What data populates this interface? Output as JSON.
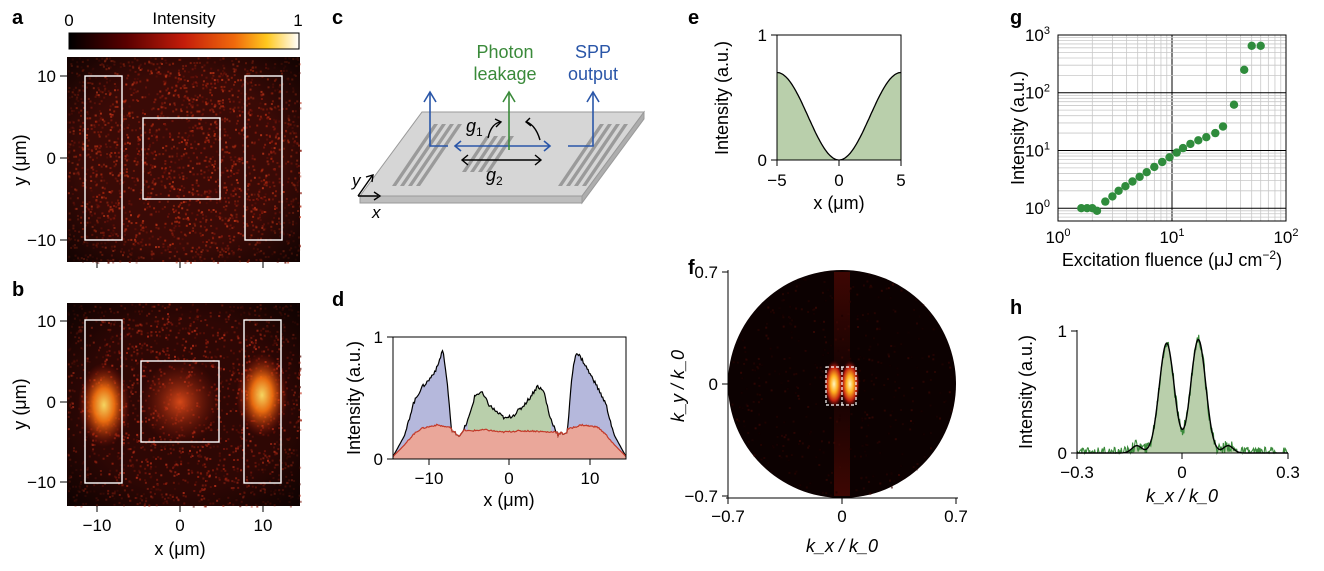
{
  "panel_letters": {
    "a": "a",
    "b": "b",
    "c": "c",
    "d": "d",
    "e": "e",
    "f": "f",
    "g": "g",
    "h": "h"
  },
  "colorbar": {
    "label": "Intensity",
    "min": "0",
    "max": "1"
  },
  "colors": {
    "blue": "#2a56a8",
    "green": "#3a8a3a",
    "fill_green": "#b9cfab",
    "fill_blue": "#b5b8dc",
    "fill_red": "#eaa79a",
    "line_red": "#c33a2a",
    "dot_green": "#2f8c3c"
  },
  "panel_a": {
    "ylabel": "y (μm)",
    "yticks": [
      "10",
      "0",
      "−10"
    ]
  },
  "panel_b": {
    "ylabel": "y (μm)",
    "yticks": [
      "10",
      "0",
      "−10"
    ],
    "xlabel": "x (μm)",
    "xticks": [
      "−10",
      "0",
      "10"
    ]
  },
  "panel_c": {
    "photon_leakage": [
      "Photon",
      "leakage"
    ],
    "spp_output": [
      "SPP",
      "output"
    ],
    "g1": "g",
    "g1_sub": "1",
    "g2": "g",
    "g2_sub": "2",
    "axis_y": "y",
    "axis_x": "x"
  },
  "panel_d": {
    "ylabel": "Intensity (a.u.)",
    "xlabel": "x (μm)",
    "yticks": [
      "1",
      "0"
    ],
    "xticks": [
      "−10",
      "0",
      "10"
    ]
  },
  "panel_e": {
    "ylabel": "Intensity (a.u.)",
    "xlabel": "x (μm)",
    "yticks": [
      "1",
      "0"
    ],
    "xticks": [
      "−5",
      "0",
      "5"
    ]
  },
  "panel_f": {
    "ylabel": "k_y / k_0",
    "xlabel": "k_x / k_0",
    "yticks": [
      "0.7",
      "0",
      "−0.7"
    ],
    "xticks": [
      "−0.7",
      "0",
      "0.7"
    ]
  },
  "panel_h": {
    "ylabel": "Intensity (a.u.)",
    "xlabel": "k_x / k_0",
    "yticks": [
      "1",
      "0"
    ],
    "xticks": [
      "−0.3",
      "0",
      "0.3"
    ]
  },
  "chart_data": [
    {
      "panel": "d",
      "type": "area",
      "xlabel": "x (μm)",
      "ylabel": "Intensity (a.u.)",
      "xlim": [
        -14.5,
        14.5
      ],
      "ylim": [
        0,
        1
      ],
      "series": [
        {
          "values_x": [
            -14.5,
            -13,
            -12,
            -11,
            -10,
            -9,
            -8.3,
            -7.8,
            -7.2,
            -6,
            -5,
            -4.3,
            -3.5,
            -2.5,
            -1.5,
            -0.5,
            0.5,
            1.5,
            2.5,
            3.5,
            4.3,
            5,
            6,
            7.2,
            7.8,
            8.3,
            9,
            10,
            11,
            12,
            13,
            14.5
          ],
          "values_y": [
            0.02,
            0.2,
            0.45,
            0.58,
            0.65,
            0.75,
            0.9,
            0.65,
            0.22,
            0.19,
            0.35,
            0.52,
            0.55,
            0.44,
            0.38,
            0.33,
            0.36,
            0.42,
            0.5,
            0.6,
            0.55,
            0.35,
            0.2,
            0.22,
            0.7,
            0.88,
            0.82,
            0.7,
            0.58,
            0.45,
            0.2,
            0.02
          ]
        },
        {
          "values_x": [
            -14.5,
            -13,
            -12,
            -11,
            -9,
            -7,
            -5,
            -3,
            -1,
            1,
            3,
            5,
            7,
            9,
            11,
            12,
            13,
            14.5
          ],
          "values_y": [
            0.02,
            0.12,
            0.2,
            0.25,
            0.28,
            0.25,
            0.23,
            0.24,
            0.22,
            0.23,
            0.23,
            0.22,
            0.24,
            0.28,
            0.26,
            0.2,
            0.12,
            0.02
          ]
        }
      ]
    },
    {
      "panel": "e",
      "type": "area",
      "xlabel": "x (μm)",
      "ylabel": "Intensity (a.u.)",
      "xlim": [
        -5,
        5
      ],
      "ylim": [
        0,
        1
      ],
      "function": "0.7*sin^2(pi*x/10)"
    },
    {
      "panel": "g",
      "type": "scatter",
      "xlabel": "Excitation fluence (μJ cm−2)",
      "ylabel": "Intensity (a.u.)",
      "xscale": "log",
      "yscale": "log",
      "xlim": [
        1,
        100
      ],
      "ylim": [
        0.6,
        1000
      ],
      "grid": true,
      "xticks": [
        "10^0",
        "10^1",
        "10^2"
      ],
      "yticks": [
        "10^0",
        "10^1",
        "10^2",
        "10^3"
      ],
      "x": [
        1.6,
        1.8,
        2.0,
        2.2,
        2.6,
        3.0,
        3.4,
        3.9,
        4.5,
        5.2,
        6.0,
        7.0,
        8.2,
        9.5,
        11,
        12.5,
        14.5,
        17,
        20,
        24,
        28,
        35,
        43,
        50,
        60
      ],
      "y": [
        1.0,
        1.0,
        1.0,
        0.9,
        1.3,
        1.6,
        2.0,
        2.4,
        2.9,
        3.5,
        4.2,
        5.2,
        6.3,
        7.6,
        9.2,
        11,
        13,
        15,
        17,
        20,
        26,
        62,
        250,
        650,
        650
      ]
    },
    {
      "panel": "h",
      "type": "area",
      "xlabel": "k_x / k_0",
      "ylabel": "Intensity (a.u.)",
      "xlim": [
        -0.3,
        0.3
      ],
      "ylim": [
        0,
        1
      ],
      "peaks": [
        {
          "center": -0.045,
          "height": 0.9
        },
        {
          "center": 0.045,
          "height": 0.93
        }
      ]
    }
  ]
}
